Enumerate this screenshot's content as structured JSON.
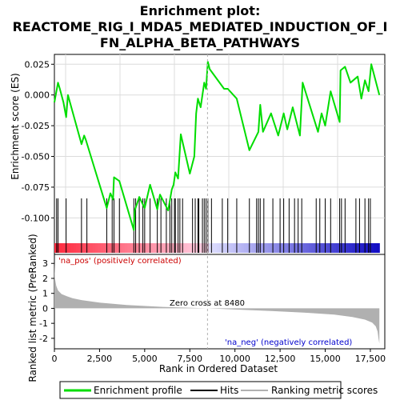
{
  "title_lines": [
    "Enrichment plot:",
    "REACTOME_RIG_I_MDA5_MEDIATED_INDUCTION_OF_I",
    "FN_ALPHA_BETA_PATHWAYS"
  ],
  "colors": {
    "es_line": "#00dd00",
    "hits": "#000000",
    "metric_fill": "#b0b0b0",
    "zero_line": "#b0b0b0",
    "pos_label": "#cc0000",
    "neg_label": "#0000cc"
  },
  "chart_data": [
    {
      "type": "line",
      "ylabel": "Enrichment score (ES)",
      "ylim": [
        -0.118,
        0.033
      ],
      "xlim": [
        0,
        18300
      ],
      "yticks": [
        0.025,
        0.0,
        -0.025,
        -0.05,
        -0.075,
        -0.1
      ],
      "ytick_labels": [
        "0.025",
        "0.000",
        "-0.025",
        "-0.050",
        "-0.075",
        "-0.100"
      ],
      "grid": true,
      "x": [
        0,
        200,
        300,
        500,
        650,
        750,
        1500,
        1650,
        1750,
        2900,
        3100,
        3250,
        3300,
        3600,
        4400,
        4450,
        4700,
        5000,
        5300,
        5700,
        5850,
        6300,
        6500,
        6600,
        6700,
        6850,
        7000,
        7500,
        7750,
        7850,
        7950,
        8100,
        8300,
        8400,
        8500,
        8600,
        9400,
        9600,
        10100,
        10800,
        11300,
        11400,
        11550,
        12000,
        12400,
        12700,
        12900,
        13200,
        13600,
        13750,
        14600,
        14800,
        15000,
        15300,
        15800,
        15850,
        16100,
        16400,
        16800,
        17000,
        17200,
        17400,
        17550,
        18000
      ],
      "y": [
        -0.006,
        0.01,
        0.005,
        -0.006,
        -0.018,
        0.0,
        -0.04,
        -0.033,
        -0.037,
        -0.092,
        -0.08,
        -0.085,
        -0.067,
        -0.07,
        -0.11,
        -0.094,
        -0.083,
        -0.092,
        -0.073,
        -0.093,
        -0.081,
        -0.094,
        -0.077,
        -0.073,
        -0.063,
        -0.068,
        -0.032,
        -0.064,
        -0.05,
        -0.015,
        -0.003,
        -0.01,
        0.01,
        0.005,
        0.027,
        0.021,
        0.005,
        0.005,
        -0.003,
        -0.045,
        -0.03,
        -0.008,
        -0.03,
        -0.015,
        -0.033,
        -0.015,
        -0.028,
        -0.01,
        -0.033,
        0.01,
        -0.03,
        -0.015,
        -0.025,
        0.003,
        -0.022,
        0.02,
        0.023,
        0.01,
        0.015,
        -0.003,
        0.012,
        0.003,
        0.025,
        0.0
      ]
    },
    {
      "type": "scatter",
      "name": "Hits",
      "x": [
        120,
        200,
        650,
        1500,
        1800,
        2900,
        3200,
        3300,
        3600,
        4400,
        4500,
        4700,
        4900,
        5000,
        5300,
        5700,
        5900,
        6200,
        6400,
        6500,
        6650,
        6700,
        6850,
        6950,
        7100,
        7650,
        7800,
        7950,
        8000,
        8200,
        8300,
        8400,
        8500,
        8700,
        9300,
        9600,
        10100,
        10800,
        11200,
        11300,
        11400,
        11600,
        12100,
        12500,
        12700,
        13000,
        13300,
        13500,
        13700,
        14500,
        14700,
        15000,
        15300,
        15800,
        15900,
        16100,
        16700,
        16900,
        17200,
        17400,
        17500
      ]
    },
    {
      "type": "area",
      "ylabel": "Ranked list metric (PreRanked)",
      "xlabel": "Rank in Ordered Dataset",
      "ylim": [
        -2.7,
        3.6
      ],
      "xlim": [
        0,
        18300
      ],
      "yticks": [
        3,
        2,
        1,
        0,
        -1,
        -2
      ],
      "ytick_labels": [
        "3",
        "2",
        "1",
        "0",
        "-1",
        "-2"
      ],
      "xticks": [
        0,
        2500,
        5000,
        7500,
        10000,
        12500,
        15000,
        17500
      ],
      "xtick_labels": [
        "0",
        "2,500",
        "5,000",
        "7,500",
        "10,000",
        "12,500",
        "15,000",
        "17,500"
      ],
      "x": [
        0,
        30,
        100,
        200,
        400,
        700,
        1000,
        1500,
        2500,
        4000,
        6000,
        8480,
        10000,
        12000,
        14000,
        15500,
        16500,
        17200,
        17600,
        17800,
        17900,
        17950,
        18000
      ],
      "values": [
        3.1,
        2.0,
        1.5,
        1.2,
        0.95,
        0.8,
        0.68,
        0.55,
        0.38,
        0.22,
        0.1,
        0.0,
        -0.08,
        -0.18,
        -0.3,
        -0.42,
        -0.58,
        -0.75,
        -0.95,
        -1.2,
        -1.55,
        -2.0,
        -2.35
      ],
      "zero_cross_label": "Zero cross at 8480",
      "pos_label": "'na_pos' (positively correlated)",
      "neg_label": "'na_neg' (negatively correlated)"
    }
  ],
  "legend": {
    "items": [
      {
        "label": "Enrichment profile"
      },
      {
        "label": "Hits"
      },
      {
        "label": "Ranking metric scores"
      }
    ]
  }
}
